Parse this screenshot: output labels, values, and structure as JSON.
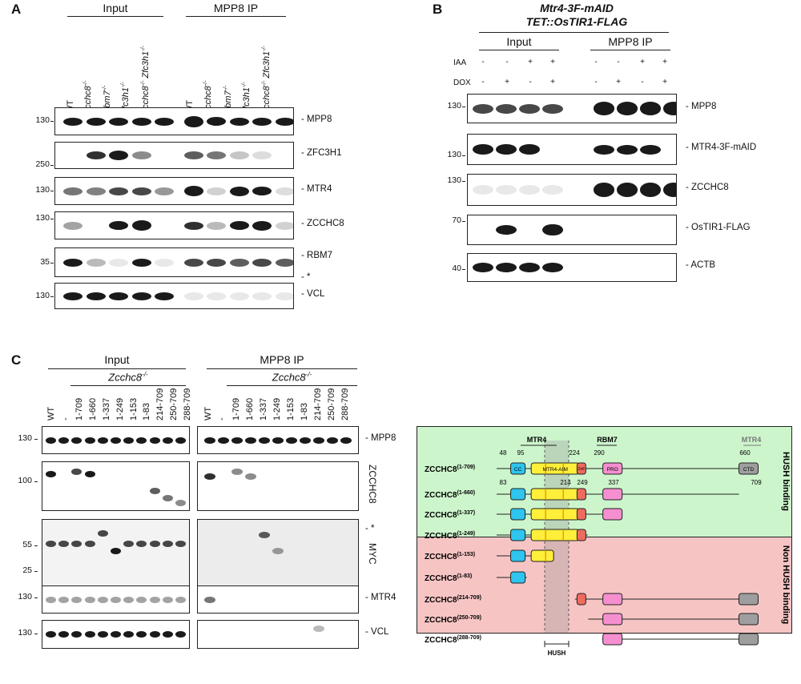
{
  "panelA": {
    "letter": "A",
    "input_header": "Input",
    "ip_header": "MPP8 IP",
    "lanes": [
      "WT",
      "Zcchc8",
      "Rbm7",
      "Zfc3h1",
      "Zcchc8 Zfc3h1",
      "WT",
      "Zcchc8",
      "Rbm7",
      "Zfc3h1",
      "Zcchc8 Zfc3h1"
    ],
    "lane_sup": "-/-",
    "blots": [
      {
        "mw": "130",
        "label": "MPP8"
      },
      {
        "mw": "250",
        "label": "ZFC3H1"
      },
      {
        "mw": "130",
        "label": "MTR4"
      },
      {
        "mw": "130",
        "label": "ZCCHC8"
      },
      {
        "mw": "35",
        "label": "RBM7",
        "label2": "*"
      },
      {
        "mw": "130",
        "label": "VCL"
      }
    ]
  },
  "panelB": {
    "letter": "B",
    "title1": "Mtr4-3F-mAID",
    "title2": "TET::OsTIR1-FLAG",
    "input_header": "Input",
    "ip_header": "MPP8 IP",
    "row1_label": "IAA",
    "row2_label": "DOX",
    "iaa": [
      "-",
      "-",
      "+",
      "+",
      "-",
      "-",
      "+",
      "+"
    ],
    "dox": [
      "-",
      "+",
      "-",
      "+",
      "-",
      "+",
      "-",
      "+"
    ],
    "blots": [
      {
        "mw": "130",
        "label": "MPP8"
      },
      {
        "mw": "130",
        "label": "MTR4-3F-mAID"
      },
      {
        "mw": "130",
        "label": "ZCCHC8"
      },
      {
        "mw": "70",
        "label": "OsTIR1-FLAG"
      },
      {
        "mw": "40",
        "label": "ACTB"
      }
    ]
  },
  "panelC": {
    "letter": "C",
    "input_header": "Input",
    "ip_header": "MPP8 IP",
    "sub_header": "Zcchc8",
    "sub_sup": "-/-",
    "lanes": [
      "WT",
      "-",
      "1-709",
      "1-660",
      "1-337",
      "1-249",
      "1-153",
      "1-83",
      "214-709",
      "250-709",
      "288-709"
    ],
    "blots": [
      {
        "mw": "130",
        "label": "MPP8"
      },
      {
        "mw": "100",
        "label": "ZCCHC8"
      },
      {
        "mw": "55",
        "mw2": "25",
        "label": "MYC",
        "label2": "*"
      },
      {
        "mw": "130",
        "label": "MTR4"
      },
      {
        "mw": "130",
        "label": "VCL"
      }
    ]
  },
  "diagram": {
    "top_labels": {
      "mtr4": "MTR4",
      "rbm7": "RBM7",
      "mtr4_ctd": "MTR4"
    },
    "positions": {
      "p48": "48",
      "p95": "95",
      "p224": "224",
      "p290": "290",
      "p660": "660",
      "p83": "83",
      "p214": "214",
      "p249": "249",
      "p337": "337",
      "p709": "709"
    },
    "domains": {
      "cc": "CC",
      "aim": "MTR4-AIM",
      "znf": "ZnF",
      "pro": "PRO",
      "ctd": "CTD"
    },
    "constructs": [
      {
        "name": "ZCCHC8",
        "range": "(1-709)"
      },
      {
        "name": "ZCCHC8",
        "range": "(1-660)"
      },
      {
        "name": "ZCCHC8",
        "range": "(1-337)"
      },
      {
        "name": "ZCCHC8",
        "range": "(1-249)"
      },
      {
        "name": "ZCCHC8",
        "range": "(1-153)"
      },
      {
        "name": "ZCCHC8",
        "range": "(1-83)"
      },
      {
        "name": "ZCCHC8",
        "range": "(214-709)"
      },
      {
        "name": "ZCCHC8",
        "range": "(250-709)"
      },
      {
        "name": "ZCCHC8",
        "range": "(288-709)"
      }
    ],
    "hush_binding": "HUSH binding",
    "non_hush_binding": "Non HUSH binding",
    "hush_label": "HUSH",
    "colors": {
      "green": "#cdf5cc",
      "red": "#f7c4c4",
      "cc": "#2ec5ee",
      "aim": "#ffef3a",
      "znf": "#ef6b5f",
      "pro": "#f58fd0",
      "ctd": "#9e9e9e"
    }
  }
}
